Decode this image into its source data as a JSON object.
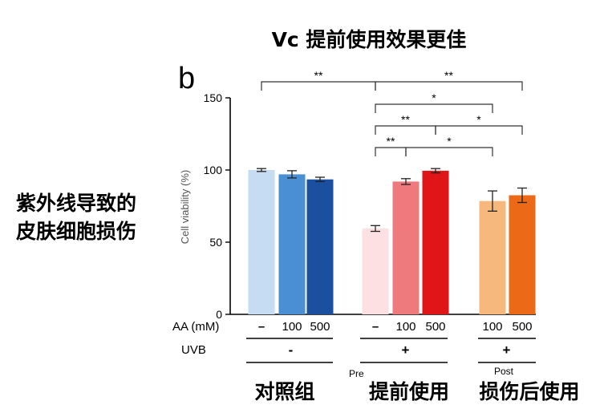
{
  "title": "Vc 提前使用效果更佳",
  "panel_letter": "b",
  "side_label": {
    "line1": "紫外线导致的",
    "line2": "皮肤细胞损伤"
  },
  "group_labels": {
    "control": "对照组",
    "pre": "提前使用",
    "post": "损伤后使用"
  },
  "row_labels": {
    "aa": "AA (mM)",
    "uvb": "UVB"
  },
  "section_labels": {
    "pre": "Pre",
    "post": "Post"
  },
  "chart_data": {
    "type": "bar",
    "ylabel": "Cell viability (%)",
    "ylim": [
      0,
      150
    ],
    "yticks": [
      0,
      50,
      100,
      150
    ],
    "bars": [
      {
        "group": "control",
        "aa": "–",
        "uvb": "-",
        "value": 100,
        "error": 1,
        "color": "#c6dcf3"
      },
      {
        "group": "control",
        "aa": "100",
        "uvb": "-",
        "value": 97,
        "error": 2.5,
        "color": "#4a8fd3"
      },
      {
        "group": "control",
        "aa": "500",
        "uvb": "-",
        "value": 93.5,
        "error": 1.5,
        "color": "#1b4fa0"
      },
      {
        "group": "pre",
        "aa": "–",
        "uvb": "+",
        "value": 59.5,
        "error": 2,
        "color": "#fde0e2"
      },
      {
        "group": "pre",
        "aa": "100",
        "uvb": "+",
        "value": 92,
        "error": 2,
        "color": "#ee7a7d"
      },
      {
        "group": "pre",
        "aa": "500",
        "uvb": "+",
        "value": 99.5,
        "error": 1.5,
        "color": "#e01517"
      },
      {
        "group": "post",
        "aa": "100",
        "uvb": "+",
        "value": 78.5,
        "error": 7,
        "color": "#f6b87d"
      },
      {
        "group": "post",
        "aa": "500",
        "uvb": "+",
        "value": 82.5,
        "error": 5,
        "color": "#ec6a17"
      }
    ],
    "uvb_groups": [
      {
        "label": "-",
        "from": 0,
        "to": 2
      },
      {
        "label": "+",
        "from": 3,
        "to": 5
      },
      {
        "label": "+",
        "from": 6,
        "to": 7
      }
    ],
    "significance": [
      {
        "from": 0,
        "to": 3,
        "label": "**",
        "level": 0
      },
      {
        "from": 3,
        "to": 7,
        "label": "**",
        "level": 0
      },
      {
        "from": 3,
        "to": 6,
        "label": "*",
        "level": 1
      },
      {
        "from": 3,
        "to": 5,
        "label": "**",
        "level": 2
      },
      {
        "from": 5,
        "to": 7,
        "label": "*",
        "level": 2
      },
      {
        "from": 3,
        "to": 4,
        "label": "**",
        "level": 3
      },
      {
        "from": 4,
        "to": 6,
        "label": "*",
        "level": 3
      }
    ]
  }
}
